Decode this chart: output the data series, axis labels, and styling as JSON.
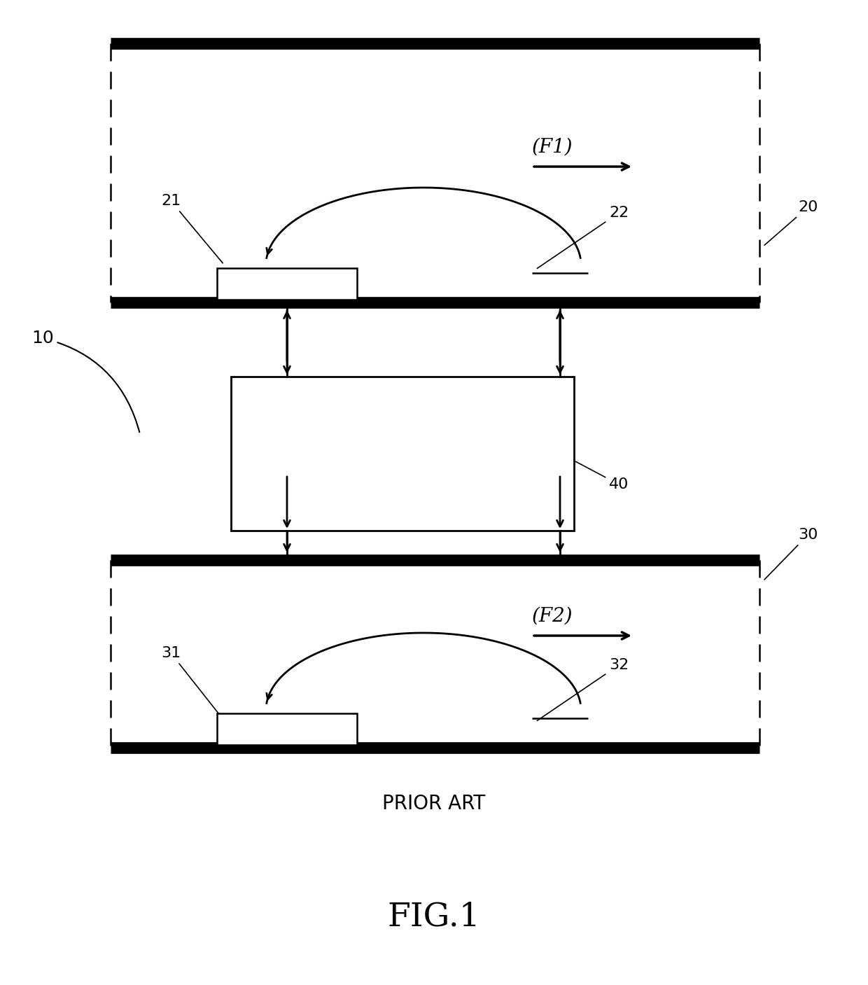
{
  "bg_color": "#ffffff",
  "line_color": "#000000",
  "fig_width": 12.4,
  "fig_height": 14.07,
  "title_text": "FIG.1",
  "prior_art_text": "PRIOR ART",
  "label_10": "10",
  "label_20": "20",
  "label_21": "21",
  "label_22": "22",
  "label_30": "30",
  "label_31": "31",
  "label_32": "32",
  "label_40": "40",
  "label_F1": "(F1)",
  "label_F2": "(F2)"
}
